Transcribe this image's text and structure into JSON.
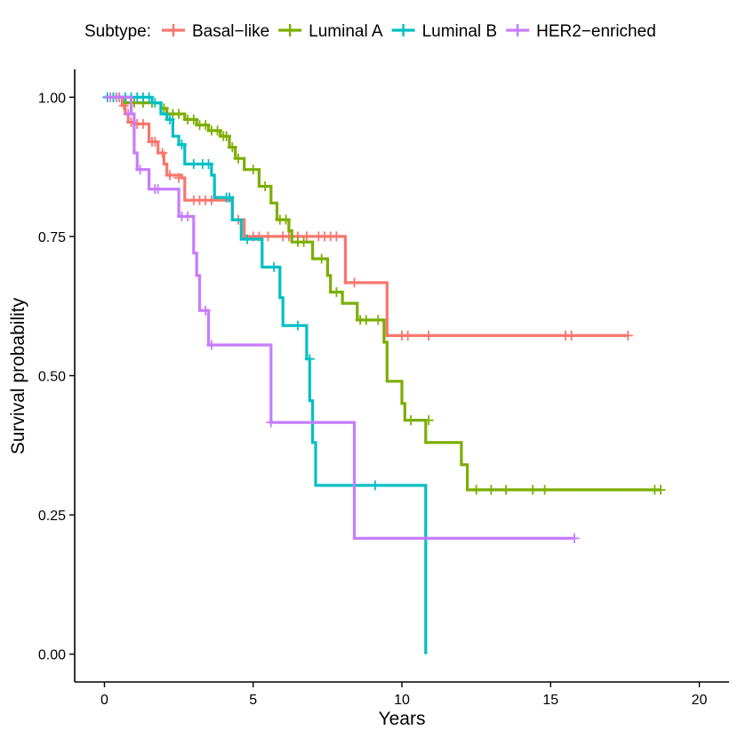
{
  "chart_data": {
    "type": "line",
    "subtype": "kaplan-meier",
    "xlabel": "Years",
    "ylabel": "Survival probability",
    "xlim": [
      -1,
      21
    ],
    "ylim": [
      -0.05,
      1.05
    ],
    "xticks": [
      0,
      5,
      10,
      15,
      20
    ],
    "xtick_labels": [
      "0",
      "5",
      "10",
      "15",
      "20"
    ],
    "yticks": [
      0,
      0.25,
      0.5,
      0.75,
      1
    ],
    "ytick_labels": [
      "0.00",
      "0.25",
      "0.50",
      "0.75",
      "1.00"
    ],
    "legend": {
      "title": "Subtype:",
      "position": "top"
    },
    "grid": false,
    "series": [
      {
        "name": "Basal−like",
        "color": "#F8766D",
        "steps": [
          [
            0,
            1
          ],
          [
            0.6,
            0.985
          ],
          [
            0.7,
            0.97
          ],
          [
            0.8,
            0.955
          ],
          [
            1.0,
            0.952
          ],
          [
            1.5,
            0.92
          ],
          [
            1.8,
            0.9
          ],
          [
            2.0,
            0.88
          ],
          [
            2.1,
            0.86
          ],
          [
            2.6,
            0.855
          ],
          [
            2.7,
            0.815
          ],
          [
            4.3,
            0.78
          ],
          [
            4.7,
            0.75
          ],
          [
            8.1,
            0.667
          ],
          [
            9.5,
            0.572
          ],
          [
            17.6,
            0.572
          ]
        ],
        "censored": [
          [
            0.4,
            1
          ],
          [
            0.65,
            0.985
          ],
          [
            0.9,
            0.955
          ],
          [
            1.1,
            0.952
          ],
          [
            1.3,
            0.952
          ],
          [
            1.6,
            0.92
          ],
          [
            1.7,
            0.92
          ],
          [
            1.95,
            0.9
          ],
          [
            2.2,
            0.86
          ],
          [
            2.5,
            0.855
          ],
          [
            3.0,
            0.815
          ],
          [
            3.2,
            0.815
          ],
          [
            3.4,
            0.815
          ],
          [
            3.6,
            0.815
          ],
          [
            4.5,
            0.78
          ],
          [
            5.0,
            0.75
          ],
          [
            5.2,
            0.75
          ],
          [
            5.5,
            0.75
          ],
          [
            6.0,
            0.75
          ],
          [
            6.2,
            0.75
          ],
          [
            6.5,
            0.75
          ],
          [
            6.8,
            0.75
          ],
          [
            7.2,
            0.75
          ],
          [
            7.4,
            0.75
          ],
          [
            7.6,
            0.75
          ],
          [
            7.8,
            0.75
          ],
          [
            8.4,
            0.667
          ],
          [
            10.0,
            0.572
          ],
          [
            10.2,
            0.572
          ],
          [
            10.9,
            0.572
          ],
          [
            15.5,
            0.572
          ],
          [
            15.7,
            0.572
          ],
          [
            17.6,
            0.572
          ]
        ]
      },
      {
        "name": "Luminal A",
        "color": "#7CAE00",
        "steps": [
          [
            0,
            1
          ],
          [
            0.7,
            0.99
          ],
          [
            1.9,
            0.98
          ],
          [
            2.1,
            0.97
          ],
          [
            2.7,
            0.96
          ],
          [
            3.1,
            0.95
          ],
          [
            3.5,
            0.94
          ],
          [
            3.9,
            0.93
          ],
          [
            4.2,
            0.91
          ],
          [
            4.4,
            0.89
          ],
          [
            4.7,
            0.87
          ],
          [
            5.2,
            0.84
          ],
          [
            5.6,
            0.81
          ],
          [
            5.8,
            0.78
          ],
          [
            6.2,
            0.76
          ],
          [
            6.3,
            0.74
          ],
          [
            7.0,
            0.71
          ],
          [
            7.5,
            0.68
          ],
          [
            7.6,
            0.65
          ],
          [
            8.0,
            0.63
          ],
          [
            8.5,
            0.6
          ],
          [
            9.4,
            0.56
          ],
          [
            9.5,
            0.49
          ],
          [
            10.0,
            0.45
          ],
          [
            10.1,
            0.42
          ],
          [
            10.8,
            0.38
          ],
          [
            12.0,
            0.34
          ],
          [
            12.2,
            0.295
          ],
          [
            18.7,
            0.295
          ]
        ],
        "censored": [
          [
            0.3,
            1
          ],
          [
            1.0,
            0.99
          ],
          [
            1.3,
            0.99
          ],
          [
            1.6,
            0.99
          ],
          [
            2.0,
            0.98
          ],
          [
            2.3,
            0.97
          ],
          [
            2.5,
            0.97
          ],
          [
            2.8,
            0.96
          ],
          [
            3.0,
            0.96
          ],
          [
            3.2,
            0.95
          ],
          [
            3.4,
            0.95
          ],
          [
            3.6,
            0.94
          ],
          [
            3.8,
            0.94
          ],
          [
            4.0,
            0.93
          ],
          [
            4.1,
            0.93
          ],
          [
            4.3,
            0.91
          ],
          [
            4.5,
            0.89
          ],
          [
            5.0,
            0.87
          ],
          [
            5.4,
            0.84
          ],
          [
            5.9,
            0.78
          ],
          [
            6.1,
            0.78
          ],
          [
            6.5,
            0.74
          ],
          [
            6.7,
            0.74
          ],
          [
            7.3,
            0.71
          ],
          [
            7.8,
            0.65
          ],
          [
            8.6,
            0.6
          ],
          [
            8.8,
            0.6
          ],
          [
            9.2,
            0.6
          ],
          [
            10.3,
            0.42
          ],
          [
            10.9,
            0.42
          ],
          [
            12.5,
            0.295
          ],
          [
            13.0,
            0.295
          ],
          [
            13.5,
            0.295
          ],
          [
            14.4,
            0.295
          ],
          [
            14.8,
            0.295
          ],
          [
            18.5,
            0.295
          ],
          [
            18.7,
            0.295
          ]
        ]
      },
      {
        "name": "Luminal B",
        "color": "#00BFC4",
        "steps": [
          [
            0,
            1
          ],
          [
            1.6,
            0.99
          ],
          [
            1.9,
            0.97
          ],
          [
            2.1,
            0.96
          ],
          [
            2.3,
            0.93
          ],
          [
            2.5,
            0.915
          ],
          [
            2.7,
            0.88
          ],
          [
            3.6,
            0.86
          ],
          [
            3.7,
            0.82
          ],
          [
            4.3,
            0.78
          ],
          [
            4.6,
            0.745
          ],
          [
            5.3,
            0.695
          ],
          [
            5.9,
            0.64
          ],
          [
            6.0,
            0.59
          ],
          [
            6.8,
            0.53
          ],
          [
            6.9,
            0.455
          ],
          [
            7.0,
            0.38
          ],
          [
            7.1,
            0.303
          ],
          [
            10.8,
            0.15
          ],
          [
            10.8,
            0.0
          ]
        ],
        "censored": [
          [
            0.1,
            1
          ],
          [
            0.3,
            1
          ],
          [
            0.5,
            1
          ],
          [
            0.7,
            1
          ],
          [
            0.9,
            1
          ],
          [
            1.1,
            1
          ],
          [
            1.3,
            1
          ],
          [
            1.5,
            1
          ],
          [
            1.7,
            0.99
          ],
          [
            2.2,
            0.96
          ],
          [
            2.6,
            0.915
          ],
          [
            3.0,
            0.88
          ],
          [
            3.3,
            0.88
          ],
          [
            3.5,
            0.88
          ],
          [
            4.1,
            0.82
          ],
          [
            4.2,
            0.82
          ],
          [
            4.8,
            0.745
          ],
          [
            5.7,
            0.695
          ],
          [
            6.5,
            0.59
          ],
          [
            6.9,
            0.53
          ],
          [
            9.1,
            0.303
          ]
        ]
      },
      {
        "name": "HER2−enriched",
        "color": "#C77CFF",
        "steps": [
          [
            0,
            1
          ],
          [
            0.9,
            0.97
          ],
          [
            1.0,
            0.9
          ],
          [
            1.1,
            0.87
          ],
          [
            1.5,
            0.835
          ],
          [
            2.5,
            0.786
          ],
          [
            3.0,
            0.72
          ],
          [
            3.1,
            0.68
          ],
          [
            3.2,
            0.617
          ],
          [
            3.5,
            0.555
          ],
          [
            5.6,
            0.416
          ],
          [
            8.4,
            0.208
          ],
          [
            15.8,
            0.208
          ]
        ],
        "censored": [
          [
            0.2,
            1
          ],
          [
            0.5,
            1
          ],
          [
            0.8,
            0.97
          ],
          [
            1.2,
            0.87
          ],
          [
            1.7,
            0.835
          ],
          [
            1.8,
            0.835
          ],
          [
            2.6,
            0.786
          ],
          [
            2.8,
            0.786
          ],
          [
            3.4,
            0.617
          ],
          [
            3.6,
            0.555
          ],
          [
            5.6,
            0.416
          ],
          [
            15.8,
            0.208
          ]
        ]
      }
    ]
  }
}
